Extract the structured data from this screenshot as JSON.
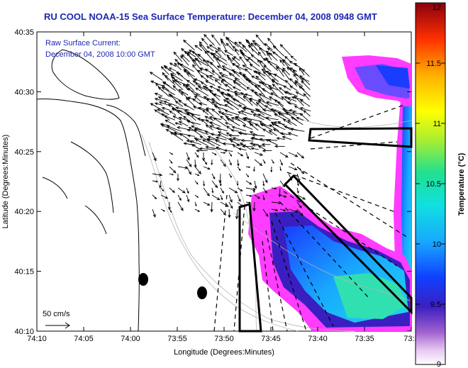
{
  "title": "RU COOL  NOAA-15  Sea Surface Temperature:  December 04, 2008 0948 GMT",
  "annotation": {
    "line1": "Raw Surface Current:",
    "line2": "December 04, 2008 10:00 GMT"
  },
  "axes": {
    "xlabel": "Longitude (Degrees:Minutes)",
    "ylabel": "Latitude (Degrees:Minutes)",
    "x_ticks": [
      "74:10",
      "74:05",
      "74:00",
      "73:55",
      "73:50",
      "73:45",
      "73:40",
      "73:35",
      "73:3"
    ],
    "y_ticks": [
      "40:35",
      "40:30",
      "40:25",
      "40:20",
      "40:15",
      "40:10"
    ]
  },
  "scale": {
    "label": "50 cm/s"
  },
  "colorbar": {
    "label": "Temperature (°C)",
    "ticks": [
      "12",
      "11.5",
      "11",
      "10.5",
      "10",
      "9.5",
      "9"
    ],
    "min": 9,
    "max": 12
  },
  "colors": {
    "title": "#1c27b4",
    "annotation": "#1c27b4",
    "land_coast": "#000000",
    "arrows": "#000000"
  }
}
